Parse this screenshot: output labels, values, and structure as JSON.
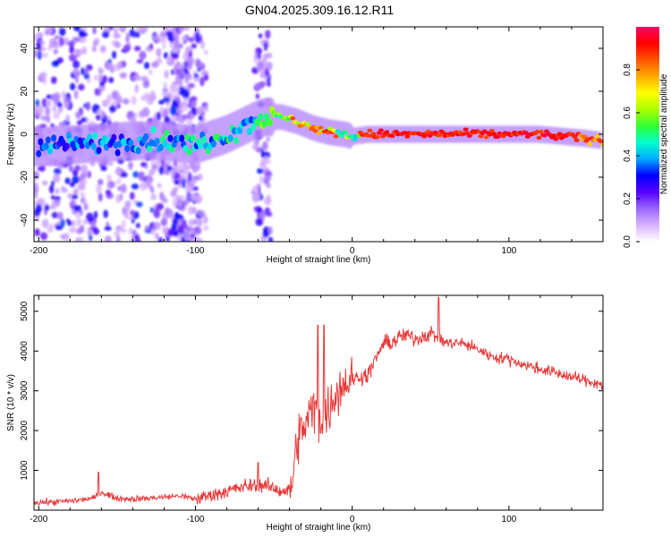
{
  "title": "GN04.2025.309.16.12.R11",
  "chart_data": [
    {
      "type": "heatmap",
      "name": "spectrogram",
      "xlabel": "Height of straight line (km)",
      "ylabel": "Frequency (Hz)",
      "xlim": [
        -203,
        160
      ],
      "ylim": [
        -50,
        50
      ],
      "xticks": [
        -200,
        -100,
        0,
        100
      ],
      "xtick_labels": [
        "-200",
        "-100",
        "0",
        "100"
      ],
      "yticks": [
        -40,
        -20,
        0,
        20,
        40
      ],
      "ytick_labels": [
        "-40",
        "-20",
        "0",
        "20",
        "40"
      ],
      "ridge": {
        "x": [
          -200,
          -180,
          -160,
          -140,
          -120,
          -100,
          -80,
          -60,
          -55,
          -45,
          -35,
          -25,
          -15,
          -5,
          0,
          10,
          40,
          80,
          120,
          150,
          160
        ],
        "y": [
          -6,
          -5,
          -4,
          -3,
          -3,
          -5,
          0,
          7,
          8,
          8,
          6,
          3,
          1,
          0,
          -1,
          0,
          0,
          0,
          0,
          -2,
          -3
        ]
      },
      "colorbar": {
        "label": "Normalized spectral amplitude",
        "range": [
          0,
          1
        ],
        "ticks": [
          0.0,
          0.2,
          0.4,
          0.6,
          0.8
        ],
        "tick_labels": [
          "0.0",
          "0.2",
          "0.4",
          "0.6",
          "0.8"
        ],
        "colors": [
          "#ffffff",
          "#d9b3ff",
          "#9966ff",
          "#5500ff",
          "#0000ff",
          "#00aaff",
          "#00ffcc",
          "#33ff33",
          "#aaff00",
          "#ffff00",
          "#ffaa00",
          "#ff5500",
          "#ff0000",
          "#ff0066"
        ]
      }
    },
    {
      "type": "line",
      "name": "snr",
      "xlabel": "Height of straight line (km)",
      "ylabel": "SNR (10 * v/v)",
      "xlim": [
        -203,
        160
      ],
      "ylim": [
        0,
        5400
      ],
      "xticks": [
        -200,
        -100,
        0,
        100
      ],
      "xtick_labels": [
        "-200",
        "-100",
        "0",
        "100"
      ],
      "yticks": [
        1000,
        2000,
        3000,
        4000,
        5000
      ],
      "ytick_labels": [
        "1000",
        "2000",
        "3000",
        "4000",
        "5000"
      ],
      "color": "#e83a3a",
      "series": [
        {
          "name": "SNR",
          "x": [
            -203,
            -190,
            -175,
            -165,
            -160,
            -150,
            -140,
            -130,
            -120,
            -110,
            -100,
            -90,
            -80,
            -70,
            -60,
            -55,
            -50,
            -45,
            -40,
            -38,
            -35,
            -30,
            -25,
            -20,
            -15,
            -10,
            -5,
            0,
            5,
            10,
            15,
            20,
            25,
            30,
            35,
            40,
            50,
            55,
            60,
            70,
            80,
            90,
            100,
            110,
            120,
            130,
            140,
            150,
            160
          ],
          "y": [
            200,
            200,
            250,
            300,
            450,
            300,
            280,
            300,
            330,
            360,
            280,
            380,
            480,
            580,
            650,
            600,
            550,
            480,
            500,
            750,
            1800,
            2100,
            2600,
            2300,
            2500,
            3000,
            3200,
            3300,
            3350,
            3400,
            3800,
            4200,
            4200,
            4350,
            4400,
            4300,
            4450,
            4350,
            4200,
            4200,
            4050,
            3850,
            3800,
            3650,
            3550,
            3450,
            3350,
            3250,
            3150
          ]
        }
      ],
      "annotations": {
        "spikes": [
          {
            "x": -162,
            "y": 950
          },
          {
            "x": -60,
            "y": 1200
          },
          {
            "x": -22,
            "y": 4650
          },
          {
            "x": -18,
            "y": 4650
          },
          {
            "x": 55,
            "y": 5350
          }
        ]
      }
    }
  ]
}
